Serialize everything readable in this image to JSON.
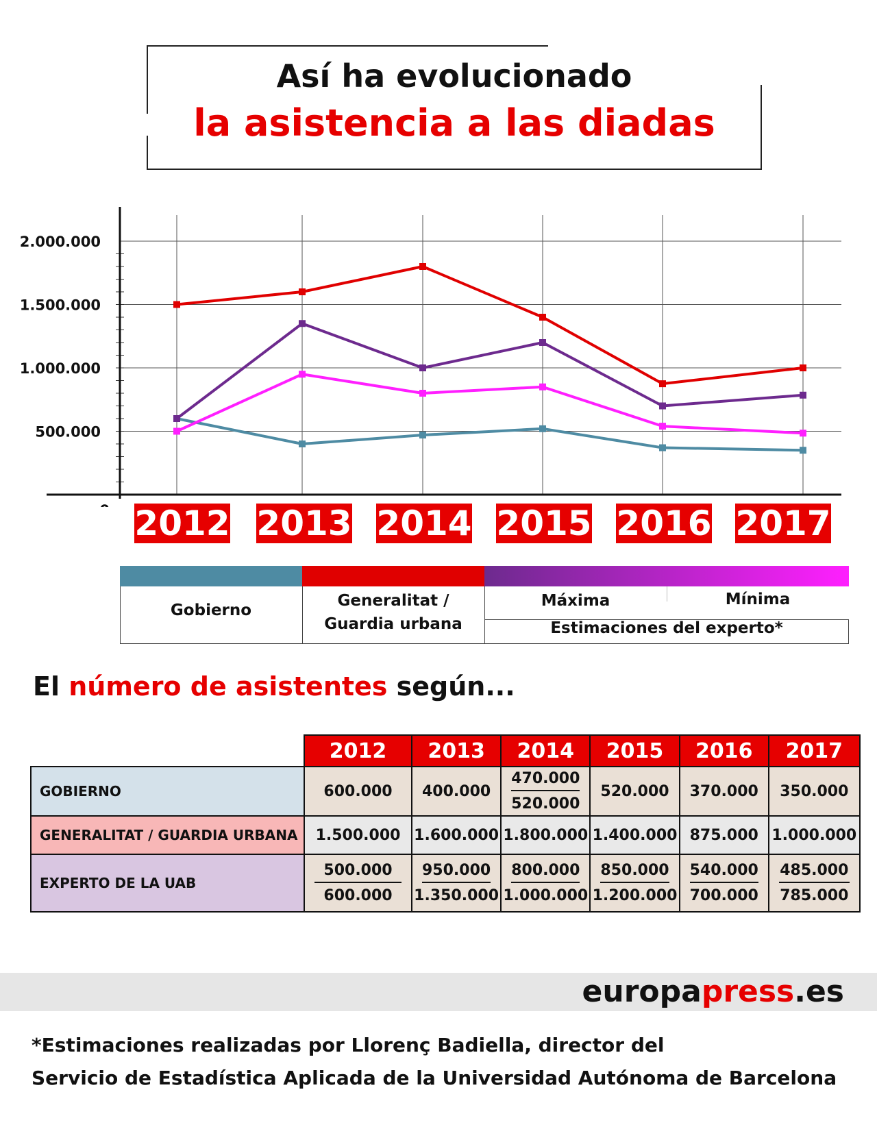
{
  "title": {
    "line1": "Así ha evolucionado",
    "line2": "la asistencia a las diadas"
  },
  "chart_data": {
    "type": "line",
    "x": [
      "2012",
      "2013",
      "2014",
      "2015",
      "2016",
      "2017"
    ],
    "series": [
      {
        "name": "Gobierno",
        "color": "#4e8ba3",
        "values": [
          600000,
          400000,
          470000,
          520000,
          370000,
          350000
        ]
      },
      {
        "name": "Generalitat / Guardia urbana",
        "color": "#e00000",
        "values": [
          1500000,
          1600000,
          1800000,
          1400000,
          875000,
          1000000
        ]
      },
      {
        "name": "Máxima",
        "color": "#6d2a8e",
        "values": [
          600000,
          1350000,
          1000000,
          1200000,
          700000,
          785000
        ]
      },
      {
        "name": "Mínima",
        "color": "#ff1fff",
        "values": [
          500000,
          950000,
          800000,
          850000,
          540000,
          485000
        ]
      }
    ],
    "yticks": [
      "2.000.000",
      "1.500.000",
      "1.000.000",
      "500.000",
      "0"
    ],
    "ytick_values": [
      2000000,
      1500000,
      1000000,
      500000,
      0
    ],
    "ylim": [
      0,
      2000000
    ],
    "grid": true,
    "legend_position": "bottom",
    "legend": {
      "gobierno": "Gobierno",
      "generalitat_line1": "Generalitat /",
      "generalitat_line2": "Guardia urbana",
      "maxima": "Máxima",
      "minima": "Mínima",
      "experto": "Estimaciones del experto*"
    }
  },
  "section_heading": {
    "part1": "El",
    "part2": "número de asistentes",
    "part3": "según..."
  },
  "table": {
    "years": [
      "2012",
      "2013",
      "2014",
      "2015",
      "2016",
      "2017"
    ],
    "rows": [
      {
        "label": "GOBIERNO",
        "bg": "#d4e1ea",
        "cell_bg": "#eae0d6",
        "cells": [
          {
            "v": "600.000"
          },
          {
            "v": "400.000"
          },
          {
            "top": "470.000",
            "bot": "520.000"
          },
          {
            "v": "520.000"
          },
          {
            "v": "370.000"
          },
          {
            "v": "350.000"
          }
        ]
      },
      {
        "label": "GENERALITAT / GUARDIA URBANA",
        "bg": "#f8b7b7",
        "cell_bg": "#e9e9e9",
        "cells": [
          {
            "v": "1.500.000"
          },
          {
            "v": "1.600.000"
          },
          {
            "v": "1.800.000"
          },
          {
            "v": "1.400.000"
          },
          {
            "v": "875.000"
          },
          {
            "v": "1.000.000"
          }
        ]
      },
      {
        "label": "EXPERTO DE LA UAB",
        "bg": "#d9c6e1",
        "cell_bg": "#eae0d6",
        "cells": [
          {
            "top": "500.000",
            "bot": "600.000"
          },
          {
            "top": "950.000",
            "bot": "1.350.000"
          },
          {
            "top": "800.000",
            "bot": "1.000.000"
          },
          {
            "top": "850.000",
            "bot": "1.200.000"
          },
          {
            "top": "540.000",
            "bot": "700.000"
          },
          {
            "top": "485.000",
            "bot": "785.000"
          }
        ]
      }
    ]
  },
  "brand": {
    "part1": "europa",
    "part2": "press",
    "part3": ".es"
  },
  "footnote": {
    "line1": "*Estimaciones realizadas por Llorenç Badiella, director del",
    "line2": "Servicio de Estadística Aplicada de la Universidad Autónoma de Barcelona"
  }
}
